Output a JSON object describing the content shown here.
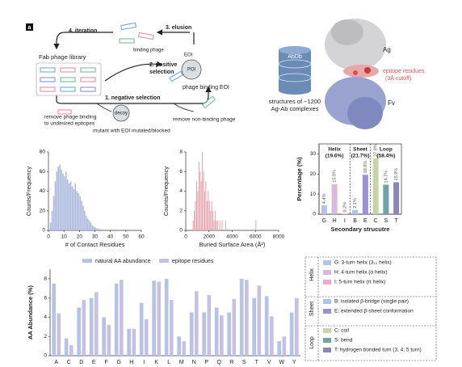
{
  "panel_label": "a",
  "diagram": {
    "iteration": "4. iteration",
    "elusion": "3. elusion",
    "binding_phage": "binding phage",
    "library": "Fab phage library",
    "positive": [
      "2. positive",
      "selection"
    ],
    "eoi": "EOI",
    "poi": "POI",
    "phage_binding_eoi": "phage binding EOI",
    "negative": "1. negative selection",
    "remove_undesired": [
      "remove phage binding",
      "to undesired epitopes"
    ],
    "decoy": "decoy",
    "mutant": "mutant with EOI mutated/blocked",
    "remove_nonbinding": "remove non-binding phage"
  },
  "database": {
    "name": "AbDb",
    "caption": [
      "structures of ~1200",
      "Ag-Ab complexes"
    ]
  },
  "structure": {
    "ag": "Ag",
    "epitope": [
      "epitope residues",
      "(3Å cutoff)"
    ],
    "fv": "Fv"
  },
  "chart_data": [
    {
      "type": "histogram",
      "bins": [
        0,
        1,
        2,
        3,
        4,
        5,
        6,
        7,
        8,
        9,
        10,
        11,
        12,
        13,
        14,
        15,
        16,
        17,
        18,
        19,
        20,
        21,
        22,
        23,
        24,
        25,
        26,
        27,
        28,
        29,
        30,
        31,
        32,
        33,
        34,
        35,
        36
      ],
      "counts": [
        2,
        8,
        20,
        35,
        50,
        60,
        65,
        67,
        62,
        58,
        55,
        60,
        52,
        48,
        50,
        45,
        42,
        48,
        40,
        38,
        35,
        30,
        25,
        20,
        15,
        12,
        10,
        8,
        5,
        4,
        3,
        2,
        2,
        1,
        1,
        1
      ],
      "color": "#a9b8dc",
      "xlim": [
        0,
        60
      ],
      "xticks": [
        0,
        10,
        20,
        30,
        40,
        50,
        60
      ],
      "ylim": [
        0,
        80
      ],
      "yticks": [
        0,
        20,
        40,
        60,
        80
      ],
      "xlabel": "# of Contact Residues",
      "ylabel": "Counts/Frequency"
    },
    {
      "type": "histogram",
      "bins": [
        500,
        600,
        700,
        800,
        900,
        1000,
        1100,
        1200,
        1300,
        1400,
        1500,
        1600,
        1700,
        1800,
        1900,
        2000,
        2100,
        2200,
        2300,
        2400,
        2500,
        2600,
        2700,
        2800,
        2900,
        3000,
        3100,
        3200,
        3300,
        3400,
        3500,
        3600,
        3700,
        3800,
        3900,
        4000,
        4100,
        4200,
        4300,
        4400,
        4500,
        4600,
        4700,
        4800,
        4900,
        5000,
        5100,
        5200,
        5300,
        5400,
        5500,
        5600,
        5700,
        5800,
        5900,
        6000,
        6100
      ],
      "counts": [
        0,
        1,
        2,
        3,
        5,
        4,
        7,
        6,
        5,
        8,
        6,
        4,
        5,
        3,
        4,
        3,
        2,
        3,
        2,
        1,
        2,
        1,
        1,
        0,
        1,
        0,
        1,
        0,
        0,
        1,
        0,
        0,
        0,
        0,
        0,
        0,
        0,
        0,
        0,
        0,
        0,
        0,
        0,
        0,
        0,
        0,
        0,
        0,
        0,
        0,
        0,
        0,
        0,
        0,
        0,
        1
      ],
      "color": "#e4a5ad",
      "xlim": [
        0,
        8000
      ],
      "xticks": [
        0,
        2000,
        4000,
        6000,
        8000
      ],
      "ylim": [
        0,
        8
      ],
      "yticks": [
        0,
        2,
        4,
        6,
        8
      ],
      "xlabel": "Buried Surface Area (Å²)",
      "ylabel": "Counts/Frequency"
    },
    {
      "type": "bar",
      "categories": [
        "G",
        "H",
        "I",
        "B",
        "E",
        "C",
        "S",
        "T"
      ],
      "values": [
        4.4,
        15.0,
        0.2,
        2.1,
        19.6,
        27.8,
        14.7,
        15.9
      ],
      "value_labels": [
        "4.4%",
        "15.0%",
        "0.2%",
        "2.1%",
        "19.6%",
        "27.8%",
        "14.7%",
        "15.9%"
      ],
      "colors": [
        "#b7c3e6",
        "#d8b9e0",
        "#f0a8c8",
        "#a9c6e8",
        "#9c90cf",
        "#c9d3a8",
        "#6fa3a8",
        "#8c86b8"
      ],
      "ylim": [
        0,
        35
      ],
      "yticks": [
        0,
        10,
        20,
        30
      ],
      "ylabel": "Percentage (%)",
      "xlabel": "Secondary strucutre",
      "groups": [
        {
          "name": "Helix",
          "share": "(19.6%)",
          "categories": [
            "G",
            "H",
            "I"
          ]
        },
        {
          "name": "Sheet",
          "share": "(21.7%)",
          "categories": [
            "B",
            "E"
          ]
        },
        {
          "name": "Loop",
          "share": "(58.4%)",
          "categories": [
            "C",
            "S",
            "T"
          ]
        }
      ],
      "legend_labels": [
        "G: 3-turn helix (3₁₀ helix)",
        "H: 4-turn helix (α helix)",
        "I: 5-turn helix (π helix)",
        "B: isolated β-bridge (single pair)",
        "E: extended β-sheet conformation",
        "C: coil",
        "S: bend",
        "T: hydrogen bonded turn (3, 4, 5 turn)"
      ]
    },
    {
      "type": "bar",
      "categories": [
        "A",
        "C",
        "D",
        "E",
        "F",
        "G",
        "H",
        "I",
        "K",
        "L",
        "M",
        "N",
        "P",
        "Q",
        "R",
        "S",
        "T",
        "V",
        "W",
        "Y"
      ],
      "series": [
        {
          "name": "natural AA abundance",
          "color": "#b5c4e6",
          "values": [
            7.5,
            1.8,
            5.0,
            6.0,
            4.0,
            7.5,
            2.8,
            5.5,
            7.8,
            8.0,
            2.0,
            4.5,
            4.5,
            5.0,
            4.5,
            8.0,
            6.0,
            6.2,
            1.5,
            4.5
          ]
        },
        {
          "name": "epitope residues",
          "color": "#c6c0e4",
          "values": [
            4.4,
            1.1,
            5.8,
            6.6,
            3.2,
            7.9,
            2.8,
            3.8,
            7.7,
            5.8,
            1.5,
            6.7,
            6.3,
            4.2,
            5.9,
            7.9,
            7.3,
            4.1,
            2.0,
            6.0
          ]
        }
      ],
      "ylim": [
        0,
        9
      ],
      "yticks": [
        0,
        2,
        4,
        6,
        8
      ],
      "ylabel": "AA Abundance (%)"
    }
  ]
}
